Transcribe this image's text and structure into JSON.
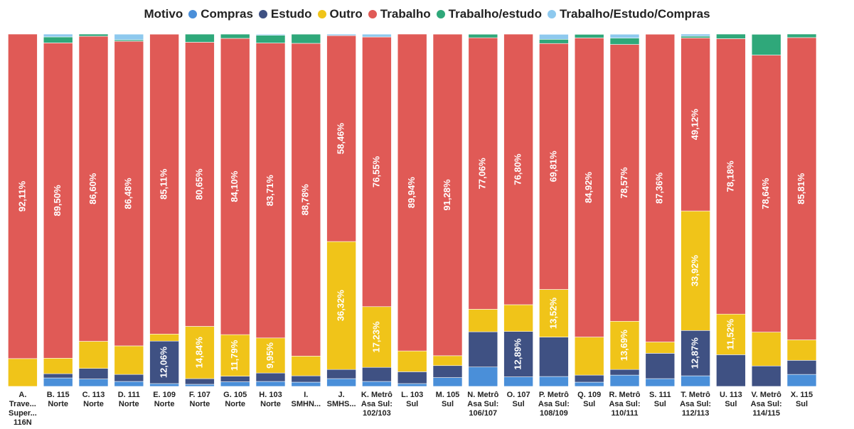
{
  "chart_data": {
    "type": "stacked_bar",
    "legend_title": "Motivo",
    "categories": [
      "A. Trave... Super... 116N",
      "B. 115 Norte",
      "C. 113 Norte",
      "D. 111 Norte",
      "E. 109 Norte",
      "F. 107 Norte",
      "G. 105 Norte",
      "H. 103 Norte",
      "I. SMHN...",
      "J. SMHS...",
      "K. Metrô Asa Sul: 102/103",
      "L. 103 Sul",
      "M. 105 Sul",
      "N. Metrô Asa Sul: 106/107",
      "O. 107 Sul",
      "P. Metrô Asa Sul: 108/109",
      "Q. 109 Sul",
      "R. Metrô Asa Sul: 110/111",
      "S. 111 Sul",
      "T. Metrô Asa Sul: 112/113",
      "U. 113 Sul",
      "V. Metrô Asa Sul: 114/115",
      "X. 115 Sul"
    ],
    "ylim": [
      0,
      100
    ],
    "series": [
      {
        "name": "Compras",
        "color": "#4a8fd9",
        "values": [
          0,
          2.4,
          2.1,
          1.4,
          0.8,
          0.6,
          1.3,
          1.4,
          1.2,
          2.2,
          1.4,
          0.8,
          2.5,
          5.5,
          2.7,
          2.8,
          1.2,
          3.2,
          2.2,
          3,
          0,
          0,
          3.4
        ],
        "value_labels": [
          null,
          null,
          null,
          null,
          null,
          null,
          null,
          null,
          null,
          null,
          null,
          null,
          null,
          null,
          null,
          null,
          null,
          null,
          null,
          null,
          null,
          null,
          null
        ]
      },
      {
        "name": "Estudo",
        "color": "#3f5183",
        "values": [
          0,
          1.2,
          3,
          2,
          12.06,
          1.6,
          1.6,
          2.4,
          1.8,
          2.6,
          4,
          3.36,
          3.4,
          10,
          12.89,
          11.2,
          2,
          1.6,
          7.2,
          12.87,
          9,
          5.8,
          4
        ],
        "value_labels": [
          null,
          null,
          null,
          null,
          "12,06%",
          null,
          null,
          null,
          null,
          null,
          null,
          null,
          null,
          null,
          "12,89%",
          null,
          null,
          null,
          null,
          "12,87%",
          null,
          null,
          null
        ]
      },
      {
        "name": "Outro",
        "color": "#f0c419",
        "values": [
          7.89,
          4.4,
          7.7,
          8.1,
          2,
          14.84,
          11.79,
          9.95,
          5.6,
          36.32,
          17.23,
          5.9,
          2.8,
          6.4,
          7.6,
          13.52,
          10.8,
          13.69,
          3.2,
          33.92,
          11.52,
          9.6,
          5.8
        ],
        "value_labels": [
          null,
          null,
          null,
          null,
          null,
          "14,84%",
          "11,79%",
          "9,95%",
          null,
          "36,32%",
          "17,23%",
          null,
          null,
          null,
          null,
          "13,52%",
          null,
          "13,69%",
          null,
          "33,92%",
          "11,52%",
          null,
          null
        ]
      },
      {
        "name": "Trabalho",
        "color": "#e05a56",
        "values": [
          92.11,
          89.5,
          86.6,
          86.48,
          85.11,
          80.65,
          84.1,
          83.71,
          88.78,
          58.46,
          76.55,
          89.94,
          91.28,
          77.06,
          76.8,
          69.81,
          84.92,
          78.57,
          87.36,
          49.12,
          78.18,
          78.64,
          85.81
        ],
        "value_labels": [
          "92,11%",
          "89,50%",
          "86,60%",
          "86,48%",
          "85,11%",
          "80,65%",
          "84,10%",
          "83,71%",
          "88,78%",
          "58,46%",
          "76,55%",
          "89,94%",
          "91,28%",
          "77,06%",
          "76,80%",
          "69,81%",
          "84,92%",
          "78,57%",
          "87,36%",
          "49,12%",
          "78,18%",
          "78,64%",
          "85,81%"
        ]
      },
      {
        "name": "Trabalho/estudo",
        "color": "#2fa87a",
        "values": [
          0,
          1.7,
          0.6,
          0.4,
          0,
          2.3,
          1.2,
          2.2,
          2.6,
          0,
          0,
          0,
          0,
          1,
          0,
          1.2,
          1,
          1.8,
          0,
          0.5,
          1.3,
          5.9,
          1
        ],
        "value_labels": [
          null,
          null,
          null,
          null,
          null,
          null,
          null,
          null,
          null,
          null,
          null,
          null,
          null,
          null,
          null,
          null,
          null,
          null,
          null,
          null,
          null,
          null,
          null
        ]
      },
      {
        "name": "Trabalho/Estudo/Compras",
        "color": "#8ec9ee",
        "values": [
          0,
          0.8,
          0,
          1.6,
          0,
          0,
          0,
          0.3,
          0,
          0.4,
          0.8,
          0,
          0,
          0,
          0,
          1.4,
          0,
          1.1,
          0,
          0.6,
          0,
          0,
          0
        ],
        "value_labels": [
          null,
          null,
          null,
          null,
          null,
          null,
          null,
          null,
          null,
          null,
          null,
          null,
          null,
          null,
          null,
          null,
          null,
          null,
          null,
          null,
          null,
          null,
          null
        ]
      }
    ]
  }
}
